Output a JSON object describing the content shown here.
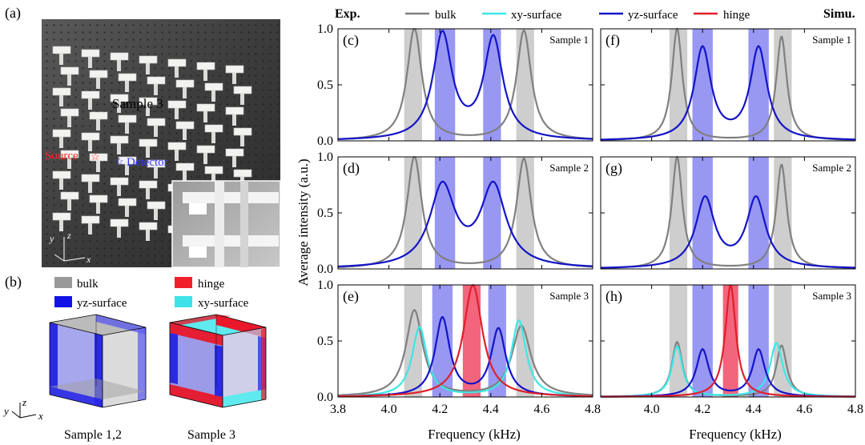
{
  "panel_a": {
    "label": "(a)",
    "sample_text": "Sample 3",
    "source_text": "Source",
    "detector_text": "Detector",
    "axis_y": "y",
    "axis_z": "z",
    "axis_x": "x"
  },
  "panel_b": {
    "label": "(b)",
    "legend": [
      {
        "label": "bulk",
        "color": "#999999"
      },
      {
        "label": "yz-surface",
        "color": "#1212e6"
      },
      {
        "label": "hinge",
        "color": "#f0202a"
      },
      {
        "label": "xy-surface",
        "color": "#3de3e8"
      }
    ],
    "cube1_caption": "Sample 1,2",
    "cube2_caption": "Sample 3",
    "axis_y": "y",
    "axis_z": "z",
    "axis_x": "x"
  },
  "header": {
    "exp": "Exp.",
    "simu": "Simu.",
    "legend": [
      {
        "label": "bulk",
        "color": "#808080"
      },
      {
        "label": "xy-surface",
        "color": "#3ee6e6"
      },
      {
        "label": "yz-surface",
        "color": "#1414c8"
      },
      {
        "label": "hinge",
        "color": "#e0202a"
      }
    ]
  },
  "ylabel": "Average intensity (a.u.)",
  "xlabel": "Frequency (kHz)",
  "chart_data": [
    {
      "type": "line",
      "panel": "(c)",
      "title": "Sample 1",
      "column": "Exp.",
      "xlim": [
        3.8,
        4.8
      ],
      "ylim": [
        0,
        1.0
      ],
      "xticks": [
        3.8,
        4.0,
        4.2,
        4.4,
        4.6,
        4.8
      ],
      "yticks": [
        0.0,
        0.5,
        1.0
      ],
      "bands": [
        {
          "range": [
            4.06,
            4.13
          ],
          "kind": "bulk"
        },
        {
          "range": [
            4.18,
            4.26
          ],
          "kind": "yz-surface"
        },
        {
          "range": [
            4.37,
            4.44
          ],
          "kind": "yz-surface"
        },
        {
          "range": [
            4.5,
            4.57
          ],
          "kind": "bulk"
        }
      ],
      "series": [
        {
          "name": "bulk",
          "peaks": [
            {
              "x": 4.1,
              "a": 1.0,
              "w": 0.035
            },
            {
              "x": 4.53,
              "a": 0.98,
              "w": 0.035
            }
          ]
        },
        {
          "name": "yz-surface",
          "peaks": [
            {
              "x": 4.21,
              "a": 0.94,
              "w": 0.045
            },
            {
              "x": 4.41,
              "a": 0.9,
              "w": 0.045
            }
          ]
        }
      ]
    },
    {
      "type": "line",
      "panel": "(d)",
      "title": "Sample 2",
      "column": "Exp.",
      "xlim": [
        3.8,
        4.8
      ],
      "ylim": [
        0,
        1.0
      ],
      "xticks": [
        3.8,
        4.0,
        4.2,
        4.4,
        4.6,
        4.8
      ],
      "yticks": [
        0.0,
        0.5,
        1.0
      ],
      "bands": [
        {
          "range": [
            4.06,
            4.13
          ],
          "kind": "bulk"
        },
        {
          "range": [
            4.18,
            4.26
          ],
          "kind": "yz-surface"
        },
        {
          "range": [
            4.37,
            4.44
          ],
          "kind": "yz-surface"
        },
        {
          "range": [
            4.5,
            4.57
          ],
          "kind": "bulk"
        }
      ],
      "series": [
        {
          "name": "bulk",
          "peaks": [
            {
              "x": 4.1,
              "a": 1.0,
              "w": 0.035
            },
            {
              "x": 4.53,
              "a": 0.98,
              "w": 0.035
            }
          ]
        },
        {
          "name": "yz-surface",
          "peaks": [
            {
              "x": 4.21,
              "a": 0.72,
              "w": 0.06
            },
            {
              "x": 4.41,
              "a": 0.72,
              "w": 0.06
            }
          ]
        }
      ]
    },
    {
      "type": "line",
      "panel": "(e)",
      "title": "Sample 3",
      "column": "Exp.",
      "xlim": [
        3.8,
        4.8
      ],
      "ylim": [
        0,
        1.0
      ],
      "xticks": [
        3.8,
        4.0,
        4.2,
        4.4,
        4.6,
        4.8
      ],
      "yticks": [
        0.0,
        0.5,
        1.0
      ],
      "bands": [
        {
          "range": [
            4.06,
            4.13
          ],
          "kind": "bulk"
        },
        {
          "range": [
            4.17,
            4.25
          ],
          "kind": "yz-surface"
        },
        {
          "range": [
            4.29,
            4.36
          ],
          "kind": "hinge"
        },
        {
          "range": [
            4.39,
            4.46
          ],
          "kind": "yz-surface"
        },
        {
          "range": [
            4.5,
            4.57
          ],
          "kind": "bulk"
        }
      ],
      "series": [
        {
          "name": "bulk",
          "peaks": [
            {
              "x": 4.1,
              "a": 0.77,
              "w": 0.04
            },
            {
              "x": 4.52,
              "a": 0.63,
              "w": 0.045
            }
          ]
        },
        {
          "name": "xy-surface",
          "peaks": [
            {
              "x": 4.12,
              "a": 0.62,
              "w": 0.035
            },
            {
              "x": 4.51,
              "a": 0.68,
              "w": 0.035
            }
          ]
        },
        {
          "name": "yz-surface",
          "peaks": [
            {
              "x": 4.21,
              "a": 0.7,
              "w": 0.035
            },
            {
              "x": 4.43,
              "a": 0.6,
              "w": 0.035
            }
          ]
        },
        {
          "name": "hinge",
          "peaks": [
            {
              "x": 4.33,
              "a": 1.0,
              "w": 0.045
            }
          ]
        }
      ]
    },
    {
      "type": "line",
      "panel": "(f)",
      "title": "Sample 1",
      "column": "Simu.",
      "xlim": [
        3.8,
        4.8
      ],
      "ylim": [
        0,
        1.0
      ],
      "xticks": [
        3.8,
        4.0,
        4.2,
        4.4,
        4.6,
        4.8
      ],
      "yticks": [
        0.0,
        0.5,
        1.0
      ],
      "bands": [
        {
          "range": [
            4.07,
            4.14
          ],
          "kind": "bulk"
        },
        {
          "range": [
            4.16,
            4.24
          ],
          "kind": "yz-surface"
        },
        {
          "range": [
            4.38,
            4.46
          ],
          "kind": "yz-surface"
        },
        {
          "range": [
            4.48,
            4.55
          ],
          "kind": "bulk"
        }
      ],
      "series": [
        {
          "name": "bulk",
          "peaks": [
            {
              "x": 4.1,
              "a": 1.0,
              "w": 0.025
            },
            {
              "x": 4.51,
              "a": 0.93,
              "w": 0.025
            }
          ]
        },
        {
          "name": "yz-surface",
          "peaks": [
            {
              "x": 4.2,
              "a": 0.82,
              "w": 0.04
            },
            {
              "x": 4.42,
              "a": 0.82,
              "w": 0.04
            }
          ]
        }
      ]
    },
    {
      "type": "line",
      "panel": "(g)",
      "title": "Sample 2",
      "column": "Simu.",
      "xlim": [
        3.8,
        4.8
      ],
      "ylim": [
        0,
        1.0
      ],
      "xticks": [
        3.8,
        4.0,
        4.2,
        4.4,
        4.6,
        4.8
      ],
      "yticks": [
        0.0,
        0.5,
        1.0
      ],
      "bands": [
        {
          "range": [
            4.07,
            4.14
          ],
          "kind": "bulk"
        },
        {
          "range": [
            4.16,
            4.24
          ],
          "kind": "yz-surface"
        },
        {
          "range": [
            4.38,
            4.46
          ],
          "kind": "yz-surface"
        },
        {
          "range": [
            4.48,
            4.55
          ],
          "kind": "bulk"
        }
      ],
      "series": [
        {
          "name": "bulk",
          "peaks": [
            {
              "x": 4.1,
              "a": 1.0,
              "w": 0.025
            },
            {
              "x": 4.51,
              "a": 0.93,
              "w": 0.025
            }
          ]
        },
        {
          "name": "yz-surface",
          "peaks": [
            {
              "x": 4.21,
              "a": 0.62,
              "w": 0.045
            },
            {
              "x": 4.41,
              "a": 0.62,
              "w": 0.045
            }
          ]
        }
      ]
    },
    {
      "type": "line",
      "panel": "(h)",
      "title": "Sample 3",
      "column": "Simu.",
      "xlim": [
        3.8,
        4.8
      ],
      "ylim": [
        0,
        1.0
      ],
      "xticks": [
        3.8,
        4.0,
        4.2,
        4.4,
        4.6,
        4.8
      ],
      "yticks": [
        0.0,
        0.5,
        1.0
      ],
      "bands": [
        {
          "range": [
            4.07,
            4.14
          ],
          "kind": "bulk"
        },
        {
          "range": [
            4.16,
            4.24
          ],
          "kind": "yz-surface"
        },
        {
          "range": [
            4.28,
            4.34
          ],
          "kind": "hinge"
        },
        {
          "range": [
            4.38,
            4.46
          ],
          "kind": "yz-surface"
        },
        {
          "range": [
            4.48,
            4.55
          ],
          "kind": "bulk"
        }
      ],
      "series": [
        {
          "name": "bulk",
          "peaks": [
            {
              "x": 4.1,
              "a": 0.49,
              "w": 0.025
            },
            {
              "x": 4.51,
              "a": 0.46,
              "w": 0.025
            }
          ]
        },
        {
          "name": "xy-surface",
          "peaks": [
            {
              "x": 4.1,
              "a": 0.45,
              "w": 0.025
            },
            {
              "x": 4.49,
              "a": 0.48,
              "w": 0.03
            }
          ]
        },
        {
          "name": "yz-surface",
          "peaks": [
            {
              "x": 4.2,
              "a": 0.42,
              "w": 0.03
            },
            {
              "x": 4.42,
              "a": 0.42,
              "w": 0.03
            }
          ]
        },
        {
          "name": "hinge",
          "peaks": [
            {
              "x": 4.31,
              "a": 1.0,
              "w": 0.025
            }
          ]
        }
      ]
    }
  ]
}
